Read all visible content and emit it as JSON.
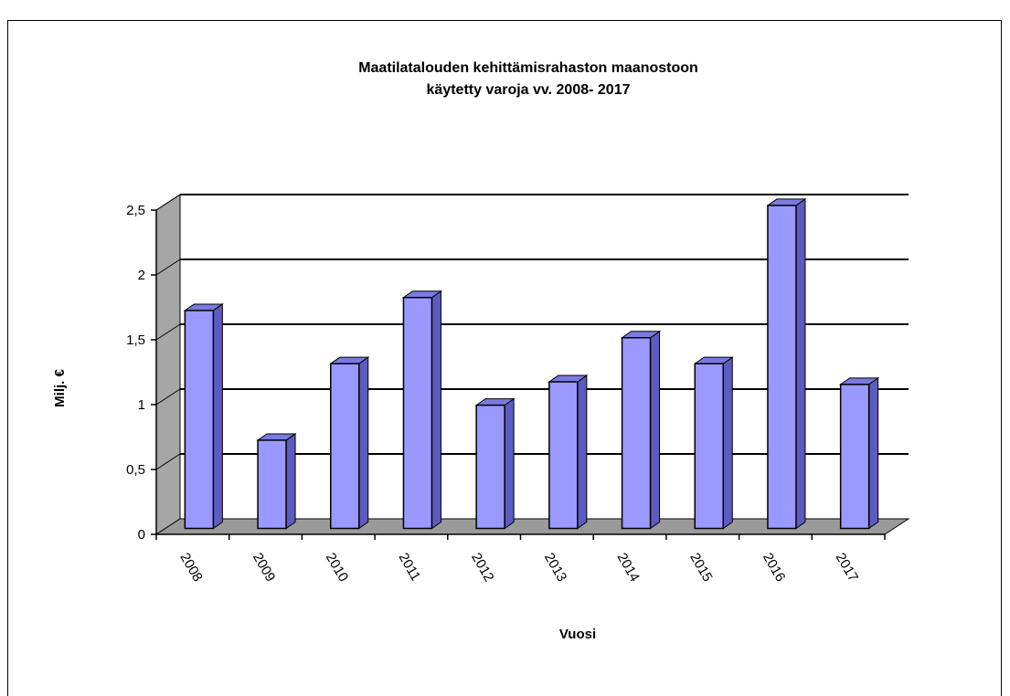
{
  "chart_data": {
    "type": "bar",
    "title": "Maatilatalouden  kehittämisrahaston  maanostoon",
    "subtitle": "käytetty varoja vv. 2008- 2017",
    "xlabel": "Vuosi",
    "ylabel": "Milj. €",
    "categories": [
      "2008",
      "2009",
      "2010",
      "2011",
      "2012",
      "2013",
      "2014",
      "2015",
      "2016",
      "2017"
    ],
    "values": [
      1.68,
      0.68,
      1.27,
      1.78,
      0.95,
      1.13,
      1.47,
      1.27,
      2.49,
      1.11
    ],
    "y_ticks": [
      "0",
      "0,5",
      "1",
      "1,5",
      "2",
      "2,5"
    ],
    "ylim": [
      0,
      2.5
    ],
    "grid": true,
    "style": "3d-bar",
    "colors": {
      "bar_front": "#9999ff",
      "bar_side": "#5c5cc0",
      "bar_top": "#7a7ae0",
      "wall": "#ffffff",
      "side_wall": "#a6a6a6",
      "floor": "#9a9a9a"
    }
  }
}
